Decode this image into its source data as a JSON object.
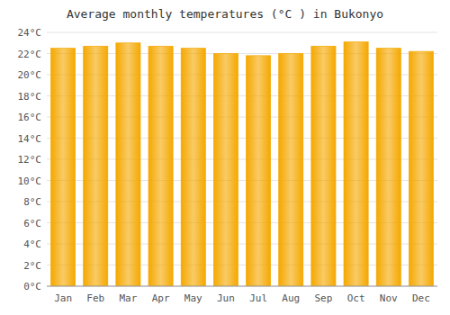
{
  "chart_data": {
    "type": "bar",
    "title": "Average monthly temperatures (°C ) in Bukonyo",
    "categories": [
      "Jan",
      "Feb",
      "Mar",
      "Apr",
      "May",
      "Jun",
      "Jul",
      "Aug",
      "Sep",
      "Oct",
      "Nov",
      "Dec"
    ],
    "values": [
      22.5,
      22.7,
      23.0,
      22.7,
      22.5,
      22.0,
      21.8,
      22.0,
      22.7,
      23.1,
      22.5,
      22.2
    ],
    "color": "#F5A800",
    "ylim": [
      0,
      24
    ],
    "yticks": [
      {
        "value": 0,
        "label": "0°C"
      },
      {
        "value": 2,
        "label": "2°C"
      },
      {
        "value": 4,
        "label": "4°C"
      },
      {
        "value": 6,
        "label": "6°C"
      },
      {
        "value": 8,
        "label": "8°C"
      },
      {
        "value": 10,
        "label": "10°C"
      },
      {
        "value": 12,
        "label": "12°C"
      },
      {
        "value": 14,
        "label": "14°C"
      },
      {
        "value": 16,
        "label": "16°C"
      },
      {
        "value": 18,
        "label": "18°C"
      },
      {
        "value": 20,
        "label": "20°C"
      },
      {
        "value": 22,
        "label": "22°C"
      },
      {
        "value": 24,
        "label": "24°C"
      }
    ],
    "grid": true
  }
}
